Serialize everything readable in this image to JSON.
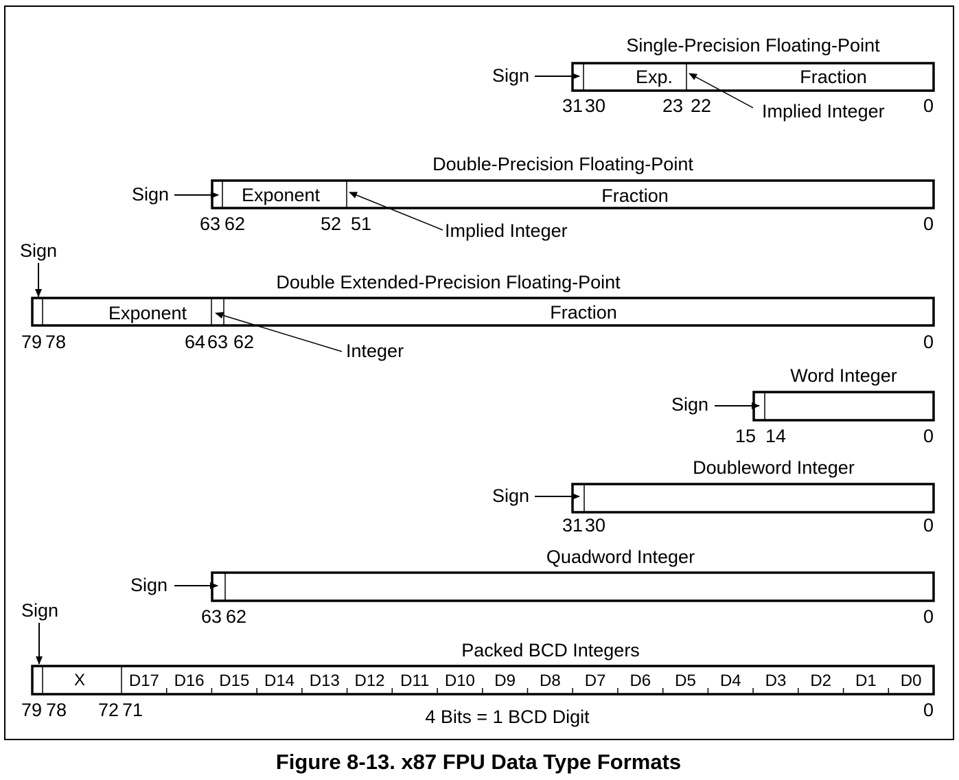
{
  "formats": {
    "single": {
      "title": "Single-Precision Floating-Point",
      "sign": "Sign",
      "exp": "Exp.",
      "fraction": "Fraction",
      "implied": "Implied Integer",
      "b31": "31",
      "b30": "30",
      "b23": "23",
      "b22": "22",
      "b0": "0"
    },
    "double": {
      "title": "Double-Precision Floating-Point",
      "sign": "Sign",
      "exp": "Exponent",
      "fraction": "Fraction",
      "implied": "Implied Integer",
      "b63": "63",
      "b62": "62",
      "b52": "52",
      "b51": "51",
      "b0": "0"
    },
    "extended": {
      "title": "Double Extended-Precision Floating-Point",
      "sign": "Sign",
      "exp": "Exponent",
      "fraction": "Fraction",
      "integer": "Integer",
      "b79": "79",
      "b78": "78",
      "b64": "64",
      "b63": "63",
      "b62": "62",
      "b0": "0"
    },
    "word": {
      "title": "Word Integer",
      "sign": "Sign",
      "b15": "15",
      "b14": "14",
      "b0": "0"
    },
    "dword": {
      "title": "Doubleword Integer",
      "sign": "Sign",
      "b31": "31",
      "b30": "30",
      "b0": "0"
    },
    "qword": {
      "title": "Quadword Integer",
      "sign": "Sign",
      "b63": "63",
      "b62": "62",
      "b0": "0"
    },
    "bcd": {
      "title": "Packed BCD Integers",
      "sign": "Sign",
      "x": "X",
      "digits": [
        "D17",
        "D16",
        "D15",
        "D14",
        "D13",
        "D12",
        "D11",
        "D10",
        "D9",
        "D8",
        "D7",
        "D6",
        "D5",
        "D4",
        "D3",
        "D2",
        "D1",
        "D0"
      ],
      "note": "4 Bits = 1 BCD Digit",
      "b79": "79",
      "b78": "78",
      "b72": "72",
      "b71": "71",
      "b0": "0"
    }
  },
  "caption": "Figure 8-13.  x87 FPU Data Type Formats"
}
